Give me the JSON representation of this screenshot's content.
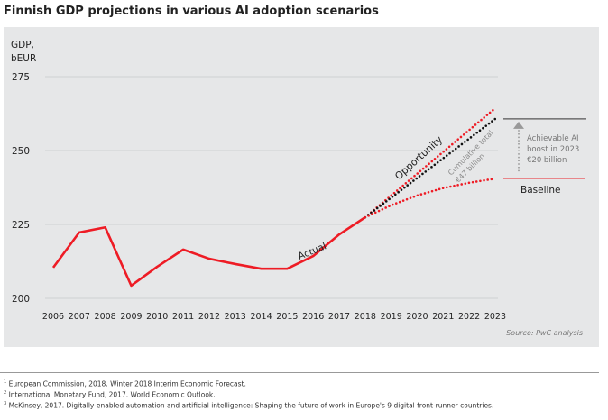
{
  "chart_data": {
    "type": "line",
    "title": "Finnish GDP projections in various AI adoption scenarios",
    "ylabel": "GDP, bEUR",
    "ylim": [
      200,
      275
    ],
    "yticks": [
      200,
      225,
      250,
      275
    ],
    "x": [
      2006,
      2007,
      2008,
      2009,
      2010,
      2011,
      2012,
      2013,
      2014,
      2015,
      2016,
      2017,
      2018,
      2019,
      2020,
      2021,
      2022,
      2023
    ],
    "grid": true,
    "series": [
      {
        "name": "Actual",
        "style": "solid",
        "color": "#ee1c25",
        "x": [
          2006,
          2007,
          2008,
          2009,
          2010,
          2011,
          2012,
          2013,
          2014,
          2015,
          2016,
          2017,
          2018
        ],
        "values": [
          210.4,
          222.3,
          224,
          204.3,
          210.7,
          216.5,
          213.4,
          211.6,
          210,
          210,
          214.3,
          221.6,
          227.4
        ]
      },
      {
        "name": "Opportunity",
        "style": "dotted",
        "color": "#ee1c25",
        "x": [
          2018,
          2023
        ],
        "values": [
          227.4,
          264.3
        ]
      },
      {
        "name": "",
        "style": "dotted",
        "color": "#111111",
        "x": [
          2018,
          2023
        ],
        "values": [
          227.4,
          260.7
        ]
      },
      {
        "name": "Baseline",
        "style": "dotted",
        "color": "#ee1c25",
        "x": [
          2018,
          2019,
          2020,
          2021,
          2022,
          2023
        ],
        "values": [
          227.4,
          231.5,
          234.8,
          237.3,
          239.1,
          240.5
        ]
      }
    ],
    "annotations": {
      "actual": "Actual",
      "opportunity": "Opportunity",
      "cumulative": [
        "Cumulative total",
        "€47 billion"
      ],
      "boost": [
        "Achievable AI",
        "boost in 2023",
        "€20 billion"
      ],
      "baseline": "Baseline",
      "reference_levels": {
        "ai": 260.7,
        "baseline": 240.5
      }
    },
    "source": "Source: PwC analysis"
  },
  "ylabel_lines": [
    "GDP,",
    "bEUR"
  ],
  "footnotes": [
    {
      "num": "1",
      "text": "European Commission, 2018. Winter 2018 Interim Economic Forecast."
    },
    {
      "num": "2",
      "text": "International Monetary Fund, 2017. World Economic Outlook."
    },
    {
      "num": "3",
      "text": "McKinsey, 2017. Digitally-enabled automation and artificial intelligence: Shaping the future of work in Europe's 9 digital front-runner countries."
    }
  ]
}
